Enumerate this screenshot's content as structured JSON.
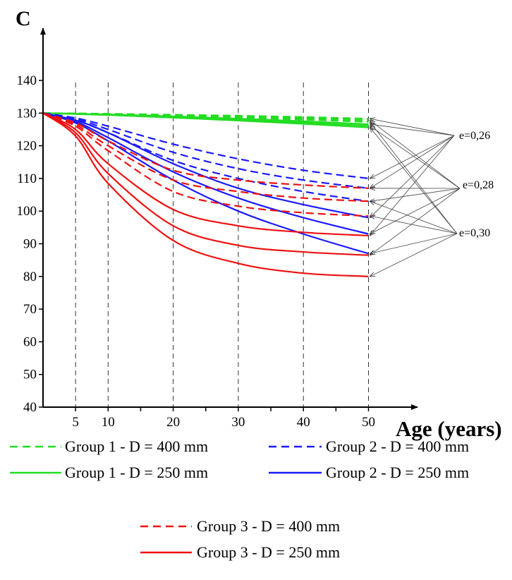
{
  "chart_data": {
    "type": "line",
    "ylabel": "C",
    "xlabel": "Age (years)",
    "ylim": [
      40,
      148
    ],
    "xlim": [
      0,
      54
    ],
    "x_ticks": [
      5,
      10,
      20,
      30,
      40,
      50
    ],
    "y_ticks": [
      40,
      50,
      60,
      70,
      80,
      90,
      100,
      110,
      120,
      130,
      140
    ],
    "vertical_reference_lines_at": [
      5,
      10,
      20,
      30,
      40,
      50
    ],
    "x": [
      0,
      5,
      10,
      20,
      30,
      40,
      50
    ],
    "series": [
      {
        "group": 1,
        "style": "dashed",
        "color": "#22dd22",
        "legend": "Group 1 - D = 400 mm",
        "e": "0,26",
        "values": [
          130,
          129.9,
          129.8,
          129.5,
          129.2,
          128.8,
          128.3
        ]
      },
      {
        "group": 1,
        "style": "dashed",
        "color": "#22dd22",
        "e": "0,28",
        "values": [
          130,
          129.9,
          129.7,
          129.3,
          128.9,
          128.4,
          127.8
        ]
      },
      {
        "group": 1,
        "style": "dashed",
        "color": "#22dd22",
        "e": "0,30",
        "values": [
          130,
          129.8,
          129.6,
          129.1,
          128.6,
          128.0,
          127.3
        ]
      },
      {
        "group": 1,
        "style": "solid",
        "color": "#22dd22",
        "legend": "Group 1 - D = 250 mm",
        "e": "0,26",
        "values": [
          130,
          129.8,
          129.6,
          129.0,
          128.3,
          127.5,
          126.6
        ]
      },
      {
        "group": 1,
        "style": "solid",
        "color": "#22dd22",
        "e": "0,28",
        "values": [
          130,
          129.8,
          129.5,
          128.8,
          128.0,
          127.1,
          126.1
        ]
      },
      {
        "group": 1,
        "style": "solid",
        "color": "#22dd22",
        "e": "0,30",
        "values": [
          130,
          129.7,
          129.4,
          128.6,
          127.7,
          126.7,
          125.6
        ]
      },
      {
        "group": 2,
        "style": "dashed",
        "color": "#1a1aff",
        "legend": "Group 2 - D = 400 mm",
        "e": "0,26",
        "values": [
          130,
          128.5,
          126,
          120.5,
          116,
          112.5,
          110
        ]
      },
      {
        "group": 2,
        "style": "dashed",
        "color": "#1a1aff",
        "e": "0,28",
        "values": [
          130,
          128.2,
          125,
          118,
          113,
          109.5,
          107
        ]
      },
      {
        "group": 2,
        "style": "dashed",
        "color": "#1a1aff",
        "e": "0,30",
        "values": [
          130,
          127.8,
          124,
          115.5,
          110,
          106,
          103
        ]
      },
      {
        "group": 2,
        "style": "solid",
        "color": "#1a1aff",
        "legend": "Group 2 - D = 250 mm",
        "e": "0,26",
        "values": [
          130,
          127.8,
          124,
          114.5,
          107,
          102,
          98
        ]
      },
      {
        "group": 2,
        "style": "solid",
        "color": "#1a1aff",
        "e": "0,28",
        "values": [
          130,
          127.4,
          122.5,
          112,
          104,
          98,
          93
        ]
      },
      {
        "group": 2,
        "style": "solid",
        "color": "#1a1aff",
        "e": "0,30",
        "values": [
          130,
          127,
          121.5,
          109.5,
          100,
          93,
          87
        ]
      },
      {
        "group": 3,
        "style": "dashed",
        "color": "#ee1111",
        "legend": "Group 3 - D = 400 mm",
        "e": "0,26",
        "values": [
          130,
          127,
          121.5,
          112.5,
          109.5,
          108,
          107
        ]
      },
      {
        "group": 3,
        "style": "dashed",
        "color": "#ee1111",
        "e": "0,28",
        "values": [
          130,
          126.5,
          120,
          109.5,
          106,
          104,
          103
        ]
      },
      {
        "group": 3,
        "style": "dashed",
        "color": "#ee1111",
        "e": "0,30",
        "values": [
          130,
          126,
          118.5,
          106,
          101.5,
          99.5,
          98.5
        ]
      },
      {
        "group": 3,
        "style": "solid",
        "color": "#ee1111",
        "legend": "Group 3 - D = 250 mm",
        "e": "0,26",
        "values": [
          130,
          125,
          114.5,
          100.5,
          95.5,
          93.5,
          92.5
        ]
      },
      {
        "group": 3,
        "style": "solid",
        "color": "#ee1111",
        "e": "0,28",
        "values": [
          130,
          124,
          111.5,
          95.5,
          89.5,
          87.5,
          86.5
        ]
      },
      {
        "group": 3,
        "style": "solid",
        "color": "#ee1111",
        "e": "0,30",
        "values": [
          130,
          123,
          108.5,
          91,
          84,
          81,
          80
        ]
      }
    ],
    "annotations": [
      {
        "text": "e=0,26"
      },
      {
        "text": "e=0,28"
      },
      {
        "text": "e=0,30"
      }
    ],
    "legend": [
      {
        "label": "Group 1 - D = 400 mm",
        "color": "#22dd22",
        "style": "dashed"
      },
      {
        "label": "Group 2 - D = 400 mm",
        "color": "#1a1aff",
        "style": "dashed"
      },
      {
        "label": "Group 1 - D = 250 mm",
        "color": "#22dd22",
        "style": "solid"
      },
      {
        "label": "Group 2 - D = 250 mm",
        "color": "#1a1aff",
        "style": "solid"
      },
      {
        "label": "Group 3 - D = 400 mm",
        "color": "#ee1111",
        "style": "dashed"
      },
      {
        "label": "Group 3 - D = 250 mm",
        "color": "#ee1111",
        "style": "solid"
      }
    ],
    "legend_placement": "bottom",
    "grid": false
  }
}
